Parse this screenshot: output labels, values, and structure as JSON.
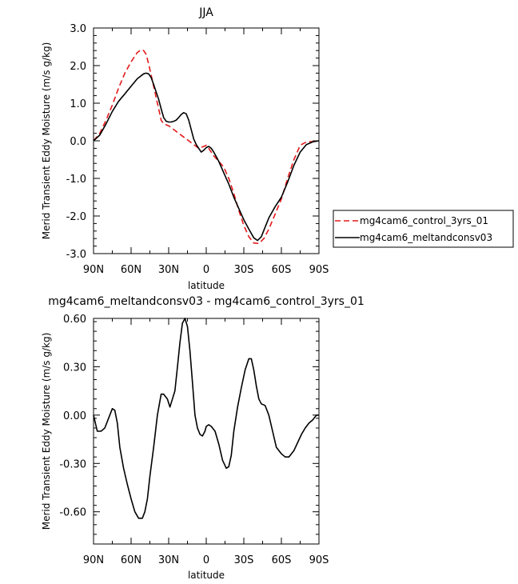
{
  "chart_data": [
    {
      "type": "line",
      "title": "JJA",
      "xlabel": "latitude",
      "ylabel": "Merid Transient Eddy Moisture (m/s g/kg)",
      "xlim": [
        90,
        -90
      ],
      "ylim": [
        -3.0,
        3.0
      ],
      "xticks": [
        90,
        60,
        30,
        0,
        -30,
        -60,
        -90
      ],
      "xtick_labels": [
        "90N",
        "60N",
        "30N",
        "0",
        "30S",
        "60S",
        "90S"
      ],
      "yticks": [
        3.0,
        2.0,
        1.0,
        0.0,
        -1.0,
        -2.0,
        -3.0
      ],
      "ytick_labels": [
        "3.0",
        "2.0",
        "1.0",
        "0.0",
        "-1.0",
        "-2.0",
        "-3.0"
      ],
      "grid": false,
      "legend_position": "outside-right",
      "series": [
        {
          "name": "mg4cam6_control_3yrs_01",
          "color": "#e31a1c",
          "dash": "dashed",
          "x": [
            90,
            85,
            80,
            75,
            70,
            65,
            60,
            55,
            52,
            50,
            48,
            46,
            44,
            42,
            40,
            38,
            36,
            34,
            30,
            26,
            22,
            18,
            14,
            10,
            6,
            2,
            0,
            -2,
            -6,
            -10,
            -14,
            -18,
            -22,
            -26,
            -30,
            -34,
            -38,
            -42,
            -46,
            -50,
            -55,
            -60,
            -65,
            -70,
            -75,
            -80,
            -85,
            -90
          ],
          "values": [
            0.0,
            0.2,
            0.55,
            0.95,
            1.4,
            1.8,
            2.1,
            2.35,
            2.42,
            2.4,
            2.3,
            2.05,
            1.75,
            1.45,
            1.15,
            0.85,
            0.55,
            0.45,
            0.4,
            0.3,
            0.2,
            0.1,
            0.0,
            -0.1,
            -0.2,
            -0.15,
            -0.12,
            -0.2,
            -0.4,
            -0.55,
            -0.7,
            -1.0,
            -1.4,
            -1.85,
            -2.25,
            -2.55,
            -2.72,
            -2.73,
            -2.6,
            -2.35,
            -1.95,
            -1.55,
            -1.0,
            -0.5,
            -0.12,
            -0.03,
            -0.02,
            0.0
          ]
        },
        {
          "name": "mg4cam6_meltandconsv03",
          "color": "#000000",
          "dash": "solid",
          "x": [
            90,
            85,
            80,
            75,
            70,
            65,
            60,
            55,
            52,
            50,
            48,
            46,
            44,
            42,
            40,
            38,
            36,
            34,
            32,
            30,
            28,
            26,
            24,
            22,
            20,
            18,
            16,
            14,
            12,
            10,
            8,
            6,
            4,
            2,
            0,
            -2,
            -4,
            -6,
            -8,
            -10,
            -14,
            -18,
            -22,
            -26,
            -30,
            -34,
            -38,
            -41,
            -44,
            -47,
            -50,
            -55,
            -60,
            -65,
            -70,
            -75,
            -80,
            -85,
            -90
          ],
          "values": [
            0.0,
            0.15,
            0.45,
            0.78,
            1.05,
            1.25,
            1.45,
            1.65,
            1.73,
            1.78,
            1.8,
            1.78,
            1.68,
            1.5,
            1.3,
            1.1,
            0.85,
            0.62,
            0.52,
            0.5,
            0.5,
            0.52,
            0.55,
            0.62,
            0.7,
            0.75,
            0.72,
            0.55,
            0.3,
            0.05,
            -0.1,
            -0.2,
            -0.3,
            -0.25,
            -0.18,
            -0.15,
            -0.2,
            -0.3,
            -0.42,
            -0.55,
            -0.85,
            -1.15,
            -1.5,
            -1.8,
            -2.1,
            -2.35,
            -2.58,
            -2.65,
            -2.55,
            -2.3,
            -2.05,
            -1.75,
            -1.5,
            -1.1,
            -0.65,
            -0.3,
            -0.1,
            -0.03,
            0.0
          ]
        }
      ]
    },
    {
      "type": "line",
      "title": "mg4cam6_meltandconsv03 - mg4cam6_control_3yrs_01",
      "xlabel": "latitude",
      "ylabel": "Merid Transient Eddy Moisture (m/s g/kg)",
      "xlim": [
        90,
        -90
      ],
      "ylim": [
        -0.8,
        0.6
      ],
      "xticks": [
        90,
        60,
        30,
        0,
        -30,
        -60,
        -90
      ],
      "xtick_labels": [
        "90N",
        "60N",
        "30N",
        "0",
        "30S",
        "60S",
        "90S"
      ],
      "yticks": [
        0.6,
        0.3,
        0.0,
        -0.3,
        -0.6
      ],
      "ytick_labels": [
        "0.60",
        "0.30",
        "0.00",
        "-0.30",
        "-0.60"
      ],
      "grid": false,
      "series": [
        {
          "color": "#000000",
          "dash": "solid",
          "x": [
            90,
            87,
            84,
            81,
            78,
            75,
            73,
            71,
            69,
            66,
            63,
            60,
            57,
            54,
            51,
            49,
            47,
            45,
            42,
            39,
            36,
            34,
            31,
            29,
            27,
            25,
            23,
            21,
            19,
            17,
            15,
            13,
            11,
            9,
            7,
            5,
            3,
            1,
            0,
            -2,
            -4,
            -7,
            -10,
            -13,
            -16,
            -18,
            -20,
            -22,
            -25,
            -28,
            -31,
            -34,
            -36,
            -38,
            -40,
            -42,
            -44,
            -47,
            -50,
            -53,
            -56,
            -60,
            -63,
            -66,
            -70,
            -73,
            -76,
            -79,
            -82,
            -85,
            -88,
            -90
          ],
          "values": [
            0.0,
            -0.1,
            -0.1,
            -0.08,
            -0.02,
            0.04,
            0.03,
            -0.05,
            -0.2,
            -0.33,
            -0.43,
            -0.52,
            -0.6,
            -0.64,
            -0.64,
            -0.6,
            -0.52,
            -0.38,
            -0.2,
            0.0,
            0.13,
            0.13,
            0.1,
            0.05,
            0.1,
            0.15,
            0.3,
            0.45,
            0.57,
            0.6,
            0.55,
            0.4,
            0.2,
            0.0,
            -0.08,
            -0.12,
            -0.13,
            -0.1,
            -0.07,
            -0.06,
            -0.07,
            -0.1,
            -0.18,
            -0.28,
            -0.33,
            -0.32,
            -0.25,
            -0.1,
            0.05,
            0.17,
            0.28,
            0.35,
            0.35,
            0.28,
            0.18,
            0.1,
            0.07,
            0.06,
            0.0,
            -0.1,
            -0.2,
            -0.24,
            -0.26,
            -0.26,
            -0.22,
            -0.17,
            -0.12,
            -0.08,
            -0.05,
            -0.03,
            0.0,
            0.0
          ]
        }
      ]
    }
  ]
}
